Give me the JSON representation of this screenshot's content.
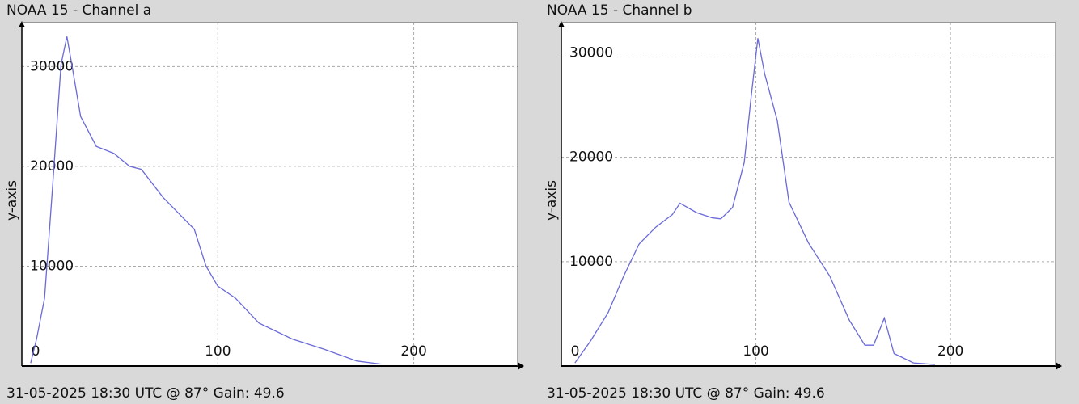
{
  "chart_data": [
    {
      "type": "line",
      "title": "NOAA 15 - Channel a",
      "y_label": "y-axis",
      "footer": "31-05-2025 18:30 UTC @ 87° Gain: 49.6",
      "color": "#6a6ad8",
      "grid": true,
      "xlim": [
        0,
        253
      ],
      "xticks": [
        0,
        100,
        200
      ],
      "ylim": [
        0,
        34400
      ],
      "yticks": [
        10000,
        20000,
        30000
      ],
      "x": [
        4.5,
        7.5,
        11.6,
        15.7,
        20,
        23,
        25.5,
        30,
        38,
        47,
        55,
        61,
        72,
        80,
        88,
        94,
        100,
        109,
        121,
        138,
        154,
        171,
        183
      ],
      "values": [
        300,
        2700,
        6800,
        18000,
        30200,
        33000,
        30200,
        25000,
        22000,
        21300,
        20000,
        19700,
        16900,
        15300,
        13700,
        10000,
        8000,
        6800,
        4300,
        2700,
        1700,
        500,
        200
      ]
    },
    {
      "type": "line",
      "title": "NOAA 15 - Channel b",
      "y_label": "y-axis",
      "footer": "31-05-2025 18:30 UTC @ 87° Gain: 49.6",
      "color": "#6a6ad8",
      "grid": true,
      "xlim": [
        0,
        254
      ],
      "xticks": [
        0,
        100,
        200
      ],
      "ylim": [
        0,
        32900
      ],
      "yticks": [
        10000,
        20000,
        30000
      ],
      "x": [
        7,
        15,
        24,
        32,
        40,
        48.5,
        57,
        61,
        69.5,
        77.6,
        82,
        88,
        94,
        97.5,
        101,
        104.5,
        111,
        117,
        127,
        138,
        148,
        156,
        160.5,
        166,
        171,
        181,
        192
      ],
      "values": [
        300,
        2400,
        5100,
        8600,
        11700,
        13300,
        14500,
        15600,
        14700,
        14200,
        14100,
        15200,
        19500,
        25700,
        31400,
        28000,
        23500,
        15700,
        11800,
        8600,
        4400,
        2000,
        2000,
        4600,
        1200,
        300,
        150
      ]
    }
  ]
}
